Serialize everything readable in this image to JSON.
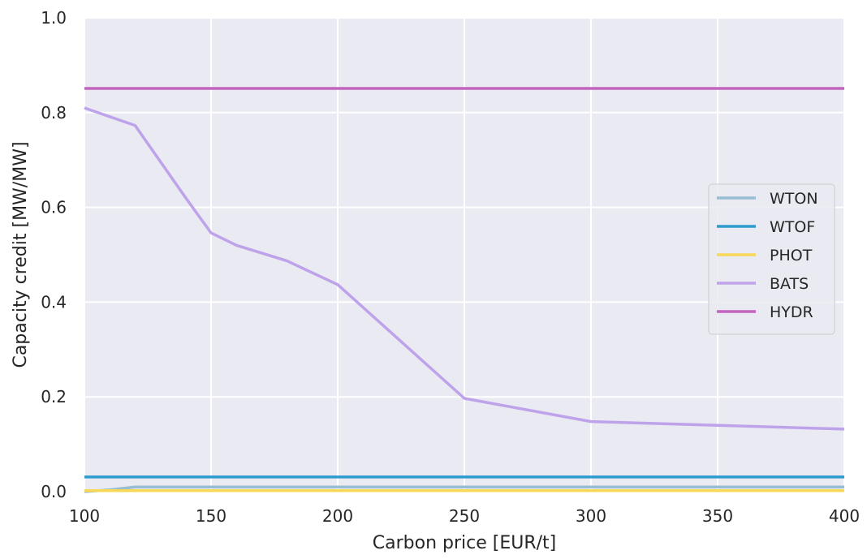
{
  "chart_data": {
    "type": "line",
    "xlabel": "Carbon price [EUR/t]",
    "ylabel": "Capacity credit [MW/MW]",
    "xlim": [
      100,
      400
    ],
    "ylim": [
      0,
      1.0
    ],
    "x_ticks": [
      100,
      150,
      200,
      250,
      300,
      350,
      400
    ],
    "x_tick_labels": [
      "100",
      "150",
      "200",
      "250",
      "300",
      "350",
      "400"
    ],
    "y_ticks": [
      0,
      0.2,
      0.4,
      0.6,
      0.8,
      1.0
    ],
    "y_tick_labels": [
      "0.0",
      "0.2",
      "0.4",
      "0.6",
      "0.8",
      "1.0"
    ],
    "grid": true,
    "legend_position": "center-right",
    "background": "#eaeaf2",
    "series": [
      {
        "name": "WTON",
        "color": "#97bdd2",
        "x": [
          100,
          110,
          120,
          140,
          150,
          160,
          180,
          200,
          250,
          300,
          350,
          400
        ],
        "y": [
          0.0,
          0.004,
          0.01,
          0.01,
          0.01,
          0.01,
          0.01,
          0.01,
          0.01,
          0.01,
          0.01,
          0.01
        ]
      },
      {
        "name": "WTOF",
        "color": "#2e9bd0",
        "x": [
          100,
          400
        ],
        "y": [
          0.031,
          0.031
        ]
      },
      {
        "name": "PHOT",
        "color": "#f7d857",
        "x": [
          100,
          400
        ],
        "y": [
          0.002,
          0.002
        ]
      },
      {
        "name": "BATS",
        "color": "#bea3ea",
        "x": [
          100,
          120,
          140,
          150,
          160,
          180,
          200,
          250,
          300,
          350,
          400
        ],
        "y": [
          0.81,
          0.773,
          0.62,
          0.546,
          0.52,
          0.487,
          0.437,
          0.197,
          0.148,
          0.14,
          0.132
        ]
      },
      {
        "name": "HYDR",
        "color": "#c266bd",
        "x": [
          100,
          400
        ],
        "y": [
          0.851,
          0.851
        ]
      }
    ]
  }
}
